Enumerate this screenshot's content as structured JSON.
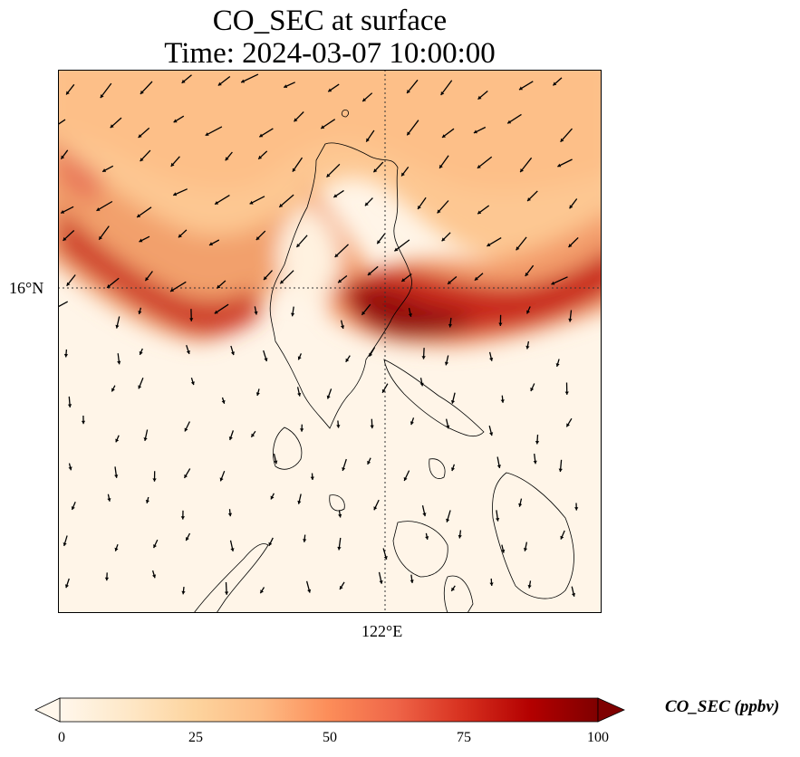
{
  "title": {
    "line1": "CO_SEC at surface",
    "line2": "Time: 2024-03-07 10:00:00"
  },
  "map": {
    "lat_label": "16°N",
    "lon_label": "122°E",
    "gridlines": "dotted",
    "coastline_color": "#000000"
  },
  "colorbar": {
    "label": "CO_SEC (ppbv)",
    "ticks": [
      "0",
      "25",
      "50",
      "75",
      "100"
    ],
    "min": 0,
    "max": 100,
    "colormap": "OrRd",
    "colors": [
      "#fff7ec",
      "#fee8c8",
      "#fdd49e",
      "#fdbb84",
      "#fc8d59",
      "#ef6548",
      "#d7301f",
      "#b30000",
      "#7f0000"
    ]
  }
}
